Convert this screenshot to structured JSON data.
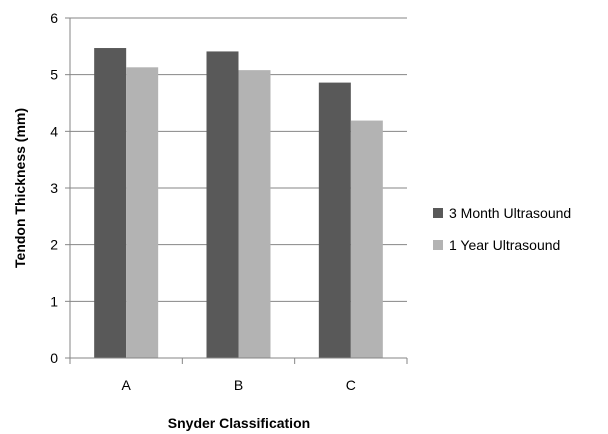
{
  "chart_data": {
    "type": "bar",
    "title": "",
    "xlabel": "Snyder Classification",
    "ylabel": "Tendon Thickness (mm)",
    "categories": [
      "A",
      "B",
      "C"
    ],
    "ylim": [
      0,
      6
    ],
    "yticks": [
      "0",
      "1",
      "2",
      "3",
      "4",
      "5",
      "6"
    ],
    "grid": true,
    "legend_position": "right",
    "series": [
      {
        "name": "3 Month Ultrasound",
        "color": "#595959",
        "values": [
          5.47,
          5.41,
          4.86
        ]
      },
      {
        "name": "1 Year Ultrasound",
        "color": "#b3b3b3",
        "values": [
          5.13,
          5.08,
          4.19
        ]
      }
    ]
  }
}
